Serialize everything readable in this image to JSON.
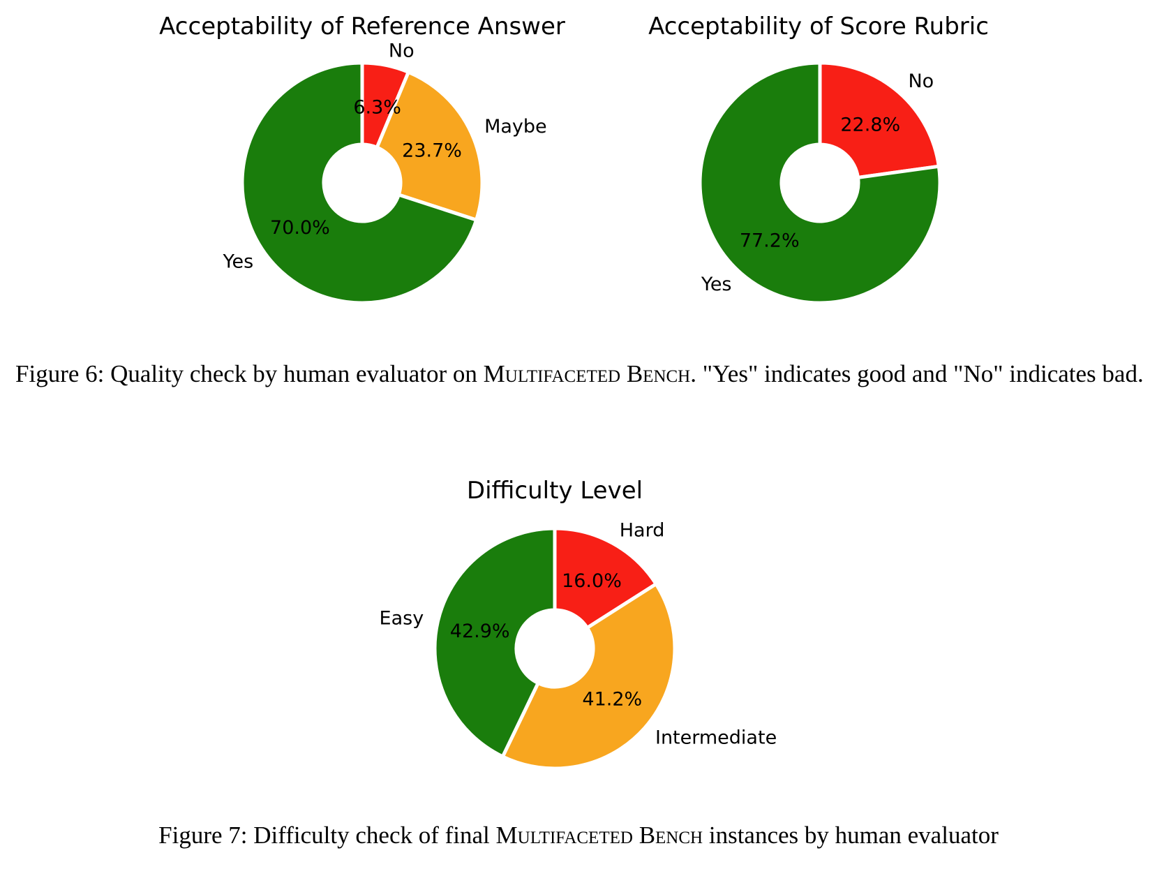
{
  "colors": {
    "green": "#1a7d0c",
    "orange": "#f8a61f",
    "red": "#f81f16",
    "separator": "#ffffff"
  },
  "chart_data": [
    {
      "type": "pie",
      "style": "donut",
      "title": "Acceptability of Reference Answer",
      "start_angle_deg": 90,
      "direction": "clockwise",
      "slices": [
        {
          "label": "No",
          "value": 6.3,
          "pct_text": "6.3%",
          "color": "#f81f16"
        },
        {
          "label": "Maybe",
          "value": 23.7,
          "pct_text": "23.7%",
          "color": "#f8a61f"
        },
        {
          "label": "Yes",
          "value": 70.0,
          "pct_text": "70.0%",
          "color": "#1a7d0c"
        }
      ]
    },
    {
      "type": "pie",
      "style": "donut",
      "title": "Acceptability of Score Rubric",
      "start_angle_deg": 90,
      "direction": "clockwise",
      "slices": [
        {
          "label": "No",
          "value": 22.8,
          "pct_text": "22.8%",
          "color": "#f81f16"
        },
        {
          "label": "Yes",
          "value": 77.2,
          "pct_text": "77.2%",
          "color": "#1a7d0c"
        }
      ]
    },
    {
      "type": "pie",
      "style": "donut",
      "title": "Difficulty Level",
      "start_angle_deg": 90,
      "direction": "clockwise",
      "slices": [
        {
          "label": "Hard",
          "value": 16.0,
          "pct_text": "16.0%",
          "color": "#f81f16"
        },
        {
          "label": "Intermediate",
          "value": 41.2,
          "pct_text": "41.2%",
          "color": "#f8a61f"
        },
        {
          "label": "Easy",
          "value": 42.9,
          "pct_text": "42.9%",
          "color": "#1a7d0c"
        }
      ]
    }
  ],
  "captions": {
    "fig6": {
      "prefix": "Figure 6: Quality check by human evaluator on ",
      "bench_name_a": "Multifaceted",
      "bench_name_b": "Bench",
      "suffix": ". \"Yes\" indicates good and \"No\" indicates bad."
    },
    "fig7": {
      "prefix": "Figure 7: Difficulty check of final ",
      "bench_name_a": "Multifaceted",
      "bench_name_b": "Bench",
      "suffix": " instances by human evaluator"
    }
  }
}
